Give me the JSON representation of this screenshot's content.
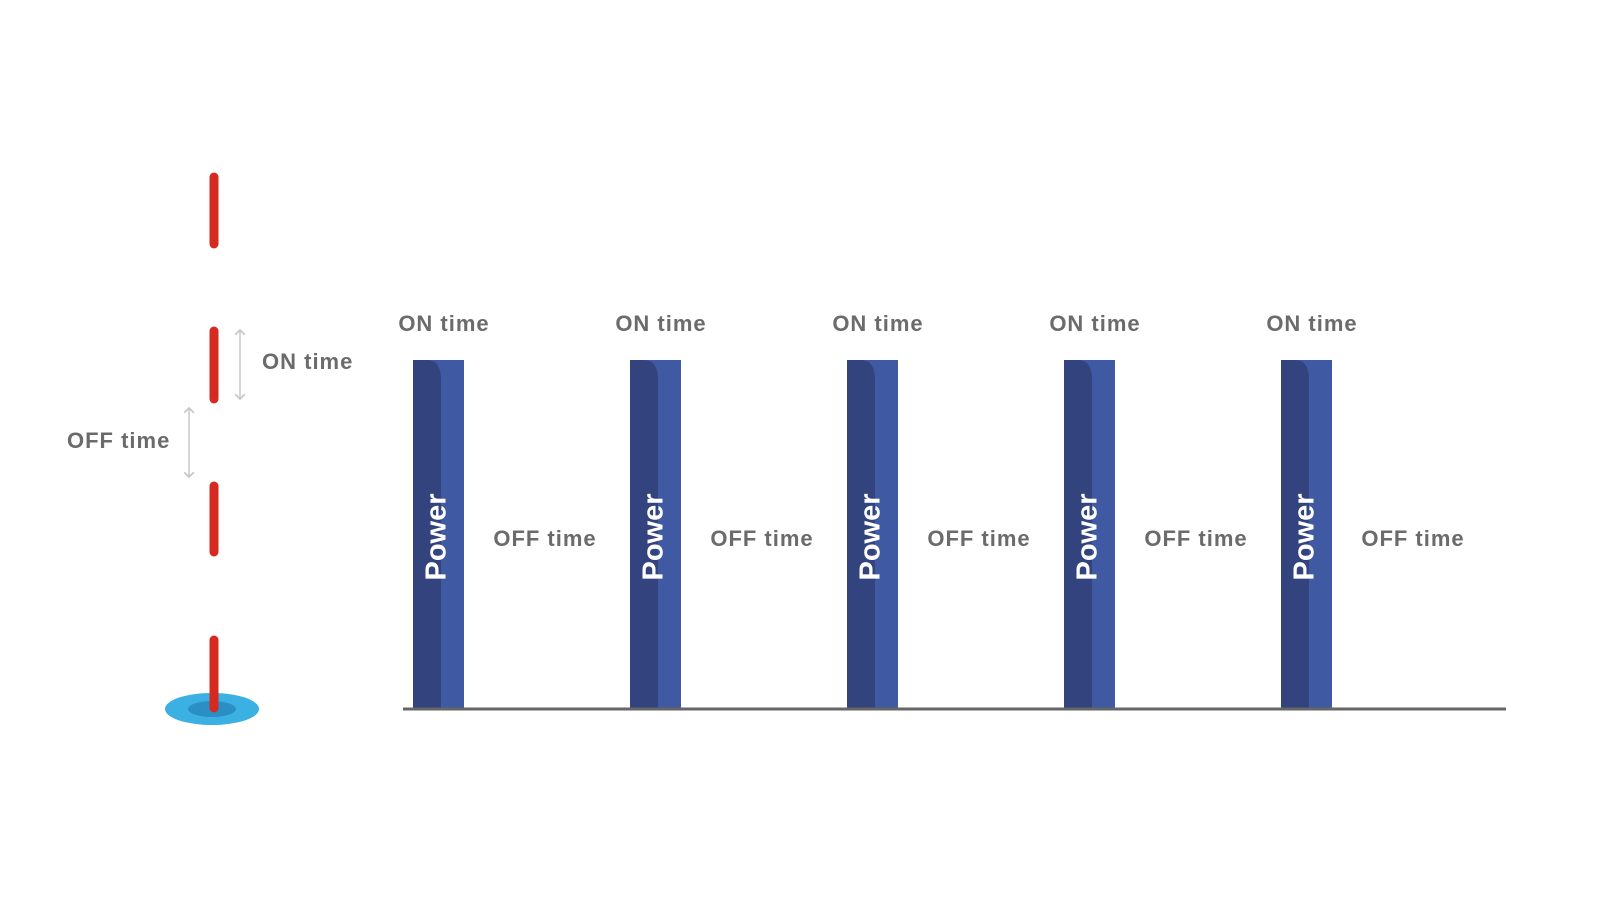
{
  "left": {
    "on_label": "ON time",
    "off_label": "OFF time"
  },
  "pulses": [
    {
      "on_label": "ON time",
      "bar_label": "Power",
      "off_label": "OFF time"
    },
    {
      "on_label": "ON time",
      "bar_label": "Power",
      "off_label": "OFF time"
    },
    {
      "on_label": "ON time",
      "bar_label": "Power",
      "off_label": "OFF time"
    },
    {
      "on_label": "ON time",
      "bar_label": "Power",
      "off_label": "OFF time"
    },
    {
      "on_label": "ON time",
      "bar_label": "Power",
      "off_label": "OFF time"
    }
  ]
}
